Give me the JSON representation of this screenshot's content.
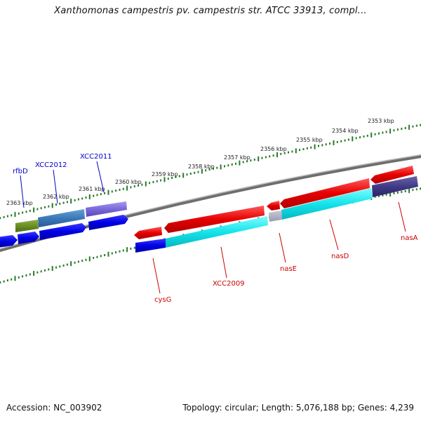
{
  "title": "Xanthomonas campestris pv. campestris str. ATCC 33913, compl...",
  "footer": {
    "accession": "Accession: NC_003902",
    "summary": "Topology: circular; Length: 5,076,188 bp; Genes: 4,239"
  },
  "colors": {
    "backbone": "#8a8a8a",
    "ticks": "#2a7a2a",
    "forward_label": "#0000cc",
    "reverse_label": "#cc0000"
  },
  "ticks": [
    {
      "label": "2363 kbp"
    },
    {
      "label": "2362 kbp"
    },
    {
      "label": "2361 kbp"
    },
    {
      "label": "2360 kbp"
    },
    {
      "label": "2359 kbp"
    },
    {
      "label": "2358 kbp"
    },
    {
      "label": "2357 kbp"
    },
    {
      "label": "2356 kbp"
    },
    {
      "label": "2355 kbp"
    },
    {
      "label": "2354 kbp"
    },
    {
      "label": "2353 kbp"
    }
  ],
  "gene_labels": {
    "forward": [
      "rfbD",
      "XCC2012",
      "XCC2011"
    ],
    "reverse": [
      "cysG",
      "XCC2009",
      "nasE",
      "nasD",
      "nasA"
    ]
  }
}
